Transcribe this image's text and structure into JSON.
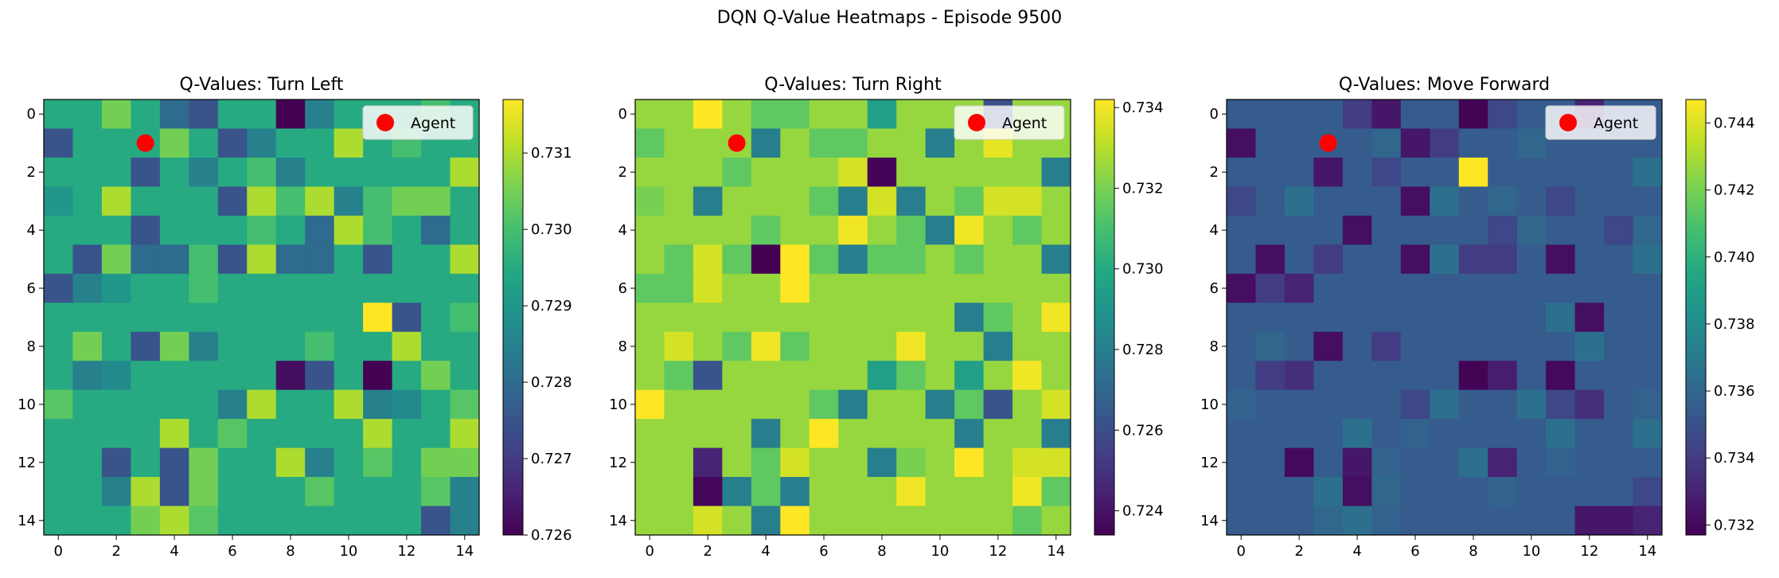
{
  "figure": {
    "title": "DQN Q-Value Heatmaps - Episode 9500"
  },
  "chart_data": [
    {
      "type": "heatmap",
      "title": "Q-Values: Turn Left",
      "xlabel": "",
      "ylabel": "",
      "x_ticks": [
        "0",
        "2",
        "4",
        "6",
        "8",
        "10",
        "12",
        "14"
      ],
      "y_ticks": [
        "0",
        "2",
        "4",
        "6",
        "8",
        "10",
        "12",
        "14"
      ],
      "colorbar": {
        "min": 0.726,
        "max": 0.7317,
        "ticks": [
          "0.726",
          "0.727",
          "0.728",
          "0.729",
          "0.730",
          "0.731"
        ]
      },
      "colormap": "viridis",
      "legend": {
        "label": "Agent",
        "placement": "upper-right",
        "marker_color": "#ff0000"
      },
      "agent": {
        "x": 3,
        "y": 1
      },
      "grid": [
        [
          0.7295,
          0.7295,
          0.7305,
          0.7295,
          0.728,
          0.7275,
          0.7295,
          0.7295,
          0.726,
          0.7285,
          0.7295,
          0.7295,
          0.7295,
          0.73,
          0.7295
        ],
        [
          0.7275,
          0.7295,
          0.7295,
          0.7295,
          0.7305,
          0.7295,
          0.7275,
          0.7285,
          0.7295,
          0.7295,
          0.731,
          0.7295,
          0.73,
          0.7295,
          0.7295
        ],
        [
          0.7295,
          0.7295,
          0.7295,
          0.7275,
          0.7295,
          0.7285,
          0.7295,
          0.73,
          0.7285,
          0.7295,
          0.7295,
          0.7295,
          0.7295,
          0.7295,
          0.731
        ],
        [
          0.729,
          0.7295,
          0.731,
          0.7295,
          0.7295,
          0.7295,
          0.7275,
          0.731,
          0.73,
          0.731,
          0.7285,
          0.73,
          0.7305,
          0.7305,
          0.7295
        ],
        [
          0.7295,
          0.7295,
          0.7295,
          0.7275,
          0.7295,
          0.7295,
          0.7295,
          0.73,
          0.7295,
          0.728,
          0.731,
          0.73,
          0.7295,
          0.728,
          0.7295
        ],
        [
          0.7295,
          0.7275,
          0.7305,
          0.728,
          0.728,
          0.73,
          0.7275,
          0.731,
          0.728,
          0.728,
          0.7295,
          0.7275,
          0.7295,
          0.7295,
          0.731
        ],
        [
          0.7275,
          0.7285,
          0.729,
          0.7295,
          0.7295,
          0.73,
          0.7295,
          0.7295,
          0.7295,
          0.7295,
          0.7295,
          0.7295,
          0.7295,
          0.7295,
          0.7295
        ],
        [
          0.7295,
          0.7295,
          0.7295,
          0.7295,
          0.7295,
          0.7295,
          0.7295,
          0.7295,
          0.7295,
          0.7295,
          0.7295,
          0.7317,
          0.7275,
          0.7295,
          0.73
        ],
        [
          0.7295,
          0.7305,
          0.7295,
          0.7275,
          0.7305,
          0.7285,
          0.7295,
          0.7295,
          0.7295,
          0.73,
          0.7295,
          0.7295,
          0.731,
          0.7295,
          0.7295
        ],
        [
          0.7295,
          0.7285,
          0.7287,
          0.7295,
          0.7295,
          0.7295,
          0.7295,
          0.7295,
          0.7262,
          0.7275,
          0.7295,
          0.726,
          0.7295,
          0.7305,
          0.7295
        ],
        [
          0.7302,
          0.7295,
          0.7295,
          0.7295,
          0.7295,
          0.7295,
          0.7285,
          0.731,
          0.7295,
          0.7295,
          0.731,
          0.7285,
          0.7287,
          0.7295,
          0.7302
        ],
        [
          0.7295,
          0.7295,
          0.7295,
          0.7295,
          0.731,
          0.7295,
          0.7302,
          0.7295,
          0.7295,
          0.7295,
          0.7295,
          0.731,
          0.7295,
          0.7295,
          0.731
        ],
        [
          0.7295,
          0.7295,
          0.7275,
          0.7295,
          0.7275,
          0.7305,
          0.7295,
          0.7295,
          0.731,
          0.7285,
          0.7295,
          0.7302,
          0.7295,
          0.7305,
          0.7305
        ],
        [
          0.7295,
          0.7295,
          0.7285,
          0.731,
          0.7275,
          0.7305,
          0.7295,
          0.7295,
          0.7295,
          0.7302,
          0.7295,
          0.7295,
          0.7295,
          0.7302,
          0.7285
        ],
        [
          0.7295,
          0.7295,
          0.7295,
          0.7305,
          0.731,
          0.7302,
          0.7295,
          0.7295,
          0.7295,
          0.7295,
          0.7295,
          0.7295,
          0.7295,
          0.7275,
          0.7285
        ]
      ]
    },
    {
      "type": "heatmap",
      "title": "Q-Values: Turn Right",
      "xlabel": "",
      "ylabel": "",
      "x_ticks": [
        "0",
        "2",
        "4",
        "6",
        "8",
        "10",
        "12",
        "14"
      ],
      "y_ticks": [
        "0",
        "2",
        "4",
        "6",
        "8",
        "10",
        "12",
        "14"
      ],
      "colorbar": {
        "min": 0.7234,
        "max": 0.7342,
        "ticks": [
          "0.724",
          "0.726",
          "0.728",
          "0.730",
          "0.732",
          "0.734"
        ]
      },
      "colormap": "viridis",
      "legend": {
        "label": "Agent",
        "placement": "upper-right",
        "marker_color": "#ff0000"
      },
      "agent": {
        "x": 3,
        "y": 1
      },
      "grid": [
        [
          0.7325,
          0.7325,
          0.7342,
          0.7325,
          0.7315,
          0.7315,
          0.7325,
          0.7325,
          0.7295,
          0.7325,
          0.7325,
          0.7325,
          0.726,
          0.7325,
          0.7325
        ],
        [
          0.7315,
          0.7325,
          0.7325,
          0.7325,
          0.728,
          0.7325,
          0.7315,
          0.7315,
          0.7325,
          0.7325,
          0.728,
          0.7325,
          0.7338,
          0.7325,
          0.7325
        ],
        [
          0.7325,
          0.7325,
          0.7325,
          0.7315,
          0.7325,
          0.7325,
          0.7325,
          0.7335,
          0.7235,
          0.7325,
          0.7325,
          0.7325,
          0.7325,
          0.7325,
          0.728
        ],
        [
          0.732,
          0.7325,
          0.728,
          0.7325,
          0.7325,
          0.7325,
          0.7315,
          0.728,
          0.7335,
          0.728,
          0.7325,
          0.7315,
          0.7335,
          0.7335,
          0.7325
        ],
        [
          0.7325,
          0.7325,
          0.7325,
          0.7325,
          0.7315,
          0.7325,
          0.7325,
          0.734,
          0.7325,
          0.7315,
          0.728,
          0.734,
          0.7325,
          0.7315,
          0.7325
        ],
        [
          0.7325,
          0.7315,
          0.7335,
          0.7315,
          0.7234,
          0.7342,
          0.7315,
          0.728,
          0.7315,
          0.7315,
          0.7325,
          0.7315,
          0.7325,
          0.7325,
          0.728
        ],
        [
          0.7315,
          0.7315,
          0.7335,
          0.7325,
          0.7325,
          0.7342,
          0.7325,
          0.7325,
          0.7325,
          0.7325,
          0.7325,
          0.7325,
          0.7325,
          0.7325,
          0.7325
        ],
        [
          0.7325,
          0.7325,
          0.7325,
          0.7325,
          0.7325,
          0.7325,
          0.7325,
          0.7325,
          0.7325,
          0.7325,
          0.7325,
          0.728,
          0.7315,
          0.7325,
          0.734
        ],
        [
          0.7325,
          0.7335,
          0.7325,
          0.7315,
          0.734,
          0.7315,
          0.7325,
          0.7325,
          0.7325,
          0.734,
          0.7325,
          0.7325,
          0.728,
          0.7325,
          0.7325
        ],
        [
          0.7325,
          0.7315,
          0.7262,
          0.7325,
          0.7325,
          0.7325,
          0.7325,
          0.7325,
          0.7295,
          0.7315,
          0.7325,
          0.7295,
          0.7325,
          0.734,
          0.7325
        ],
        [
          0.7342,
          0.7325,
          0.7325,
          0.7325,
          0.7325,
          0.7325,
          0.7315,
          0.728,
          0.7325,
          0.7325,
          0.728,
          0.7315,
          0.7262,
          0.7325,
          0.7335
        ],
        [
          0.7325,
          0.7325,
          0.7325,
          0.7325,
          0.728,
          0.7325,
          0.7342,
          0.7325,
          0.7325,
          0.7325,
          0.7325,
          0.728,
          0.7325,
          0.7325,
          0.728
        ],
        [
          0.7325,
          0.7325,
          0.7245,
          0.7325,
          0.7315,
          0.7335,
          0.7325,
          0.7325,
          0.728,
          0.732,
          0.7325,
          0.7342,
          0.7325,
          0.7335,
          0.7335
        ],
        [
          0.7325,
          0.7325,
          0.7236,
          0.728,
          0.7315,
          0.728,
          0.7325,
          0.7325,
          0.7325,
          0.734,
          0.7325,
          0.7325,
          0.7325,
          0.734,
          0.7315
        ],
        [
          0.7325,
          0.7325,
          0.7335,
          0.7325,
          0.728,
          0.7342,
          0.7325,
          0.7325,
          0.7325,
          0.7325,
          0.7325,
          0.7325,
          0.7325,
          0.7315,
          0.7325
        ]
      ]
    },
    {
      "type": "heatmap",
      "title": "Q-Values: Move Forward",
      "xlabel": "",
      "ylabel": "",
      "x_ticks": [
        "0",
        "2",
        "4",
        "6",
        "8",
        "10",
        "12",
        "14"
      ],
      "y_ticks": [
        "0",
        "2",
        "4",
        "6",
        "8",
        "10",
        "12",
        "14"
      ],
      "colorbar": {
        "min": 0.7317,
        "max": 0.7447,
        "ticks": [
          "0.732",
          "0.734",
          "0.736",
          "0.738",
          "0.740",
          "0.742",
          "0.744"
        ]
      },
      "colormap": "viridis",
      "legend": {
        "label": "Agent",
        "placement": "upper-right",
        "marker_color": "#ff0000"
      },
      "agent": {
        "x": 3,
        "y": 1
      },
      "grid": [
        [
          0.7355,
          0.7355,
          0.7355,
          0.7355,
          0.734,
          0.7325,
          0.7355,
          0.7355,
          0.7318,
          0.7345,
          0.7355,
          0.7355,
          0.733,
          0.7355,
          0.7355
        ],
        [
          0.7322,
          0.7355,
          0.7355,
          0.7355,
          0.7355,
          0.736,
          0.7325,
          0.734,
          0.7355,
          0.7355,
          0.736,
          0.7355,
          0.7355,
          0.7355,
          0.7355
        ],
        [
          0.7355,
          0.7355,
          0.7355,
          0.7325,
          0.7355,
          0.7345,
          0.7355,
          0.7355,
          0.7447,
          0.7355,
          0.7355,
          0.7355,
          0.7355,
          0.7355,
          0.7365
        ],
        [
          0.7345,
          0.7355,
          0.7365,
          0.7355,
          0.7355,
          0.7355,
          0.7322,
          0.7365,
          0.7355,
          0.736,
          0.7355,
          0.7345,
          0.7355,
          0.7355,
          0.7355
        ],
        [
          0.7355,
          0.7355,
          0.7355,
          0.7355,
          0.7322,
          0.7355,
          0.7355,
          0.7355,
          0.7355,
          0.7345,
          0.736,
          0.7355,
          0.7355,
          0.7345,
          0.736
        ],
        [
          0.7355,
          0.7322,
          0.7355,
          0.734,
          0.7355,
          0.7355,
          0.7322,
          0.7365,
          0.734,
          0.734,
          0.7355,
          0.7322,
          0.7355,
          0.7355,
          0.7365
        ],
        [
          0.7322,
          0.734,
          0.733,
          0.7355,
          0.7355,
          0.7355,
          0.7355,
          0.7355,
          0.7355,
          0.7355,
          0.7355,
          0.7355,
          0.7355,
          0.7355,
          0.7355
        ],
        [
          0.7355,
          0.7355,
          0.7355,
          0.7355,
          0.7355,
          0.7355,
          0.7355,
          0.7355,
          0.7355,
          0.7355,
          0.7355,
          0.7365,
          0.7322,
          0.7355,
          0.7355
        ],
        [
          0.7355,
          0.736,
          0.7355,
          0.7322,
          0.7355,
          0.734,
          0.7355,
          0.7355,
          0.7355,
          0.7355,
          0.7355,
          0.7355,
          0.7365,
          0.7355,
          0.7355
        ],
        [
          0.7355,
          0.734,
          0.7335,
          0.7355,
          0.7355,
          0.7355,
          0.7355,
          0.7355,
          0.7318,
          0.7328,
          0.7355,
          0.732,
          0.7355,
          0.7355,
          0.7355
        ],
        [
          0.7358,
          0.7355,
          0.7355,
          0.7355,
          0.7355,
          0.7355,
          0.7345,
          0.7365,
          0.7355,
          0.7355,
          0.7365,
          0.7345,
          0.7335,
          0.7355,
          0.7358
        ],
        [
          0.7355,
          0.7355,
          0.7355,
          0.7355,
          0.7365,
          0.7355,
          0.7358,
          0.7355,
          0.7355,
          0.7355,
          0.7355,
          0.7365,
          0.7355,
          0.7355,
          0.7365
        ],
        [
          0.7355,
          0.7355,
          0.732,
          0.7355,
          0.7325,
          0.7358,
          0.7355,
          0.7355,
          0.7365,
          0.733,
          0.7355,
          0.7358,
          0.7355,
          0.7355,
          0.7355
        ],
        [
          0.7355,
          0.7355,
          0.7355,
          0.7365,
          0.7322,
          0.736,
          0.7355,
          0.7355,
          0.7355,
          0.7358,
          0.7355,
          0.7355,
          0.7355,
          0.7355,
          0.7345
        ],
        [
          0.7355,
          0.7355,
          0.7355,
          0.736,
          0.7365,
          0.7358,
          0.7355,
          0.7355,
          0.7355,
          0.7355,
          0.7355,
          0.7355,
          0.7325,
          0.7325,
          0.733
        ]
      ]
    }
  ]
}
